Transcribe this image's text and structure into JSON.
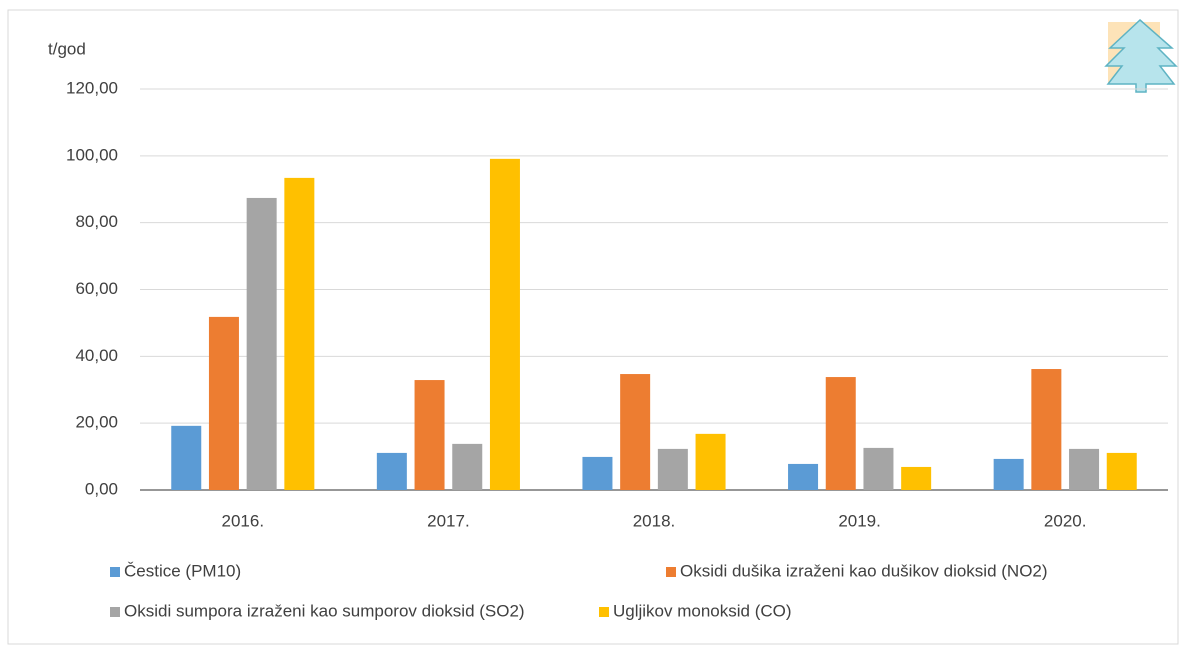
{
  "chart_data": {
    "type": "bar",
    "y_label": "t/god",
    "categories": [
      "2016.",
      "2017.",
      "2018.",
      "2019.",
      "2020."
    ],
    "series": [
      {
        "name": "Čestice (PM10)",
        "color": "#5b9bd5",
        "values": [
          19.2,
          11.1,
          9.9,
          7.8,
          9.3
        ]
      },
      {
        "name": "Oksidi dušika izraženi kao dušikov dioksid (NO2)",
        "color": "#ed7d31",
        "values": [
          51.8,
          32.9,
          34.7,
          33.8,
          36.2
        ]
      },
      {
        "name": "Oksidi sumpora izraženi kao sumporov dioksid (SO2)",
        "color": "#a5a5a5",
        "values": [
          87.4,
          13.8,
          12.3,
          12.6,
          12.3
        ]
      },
      {
        "name": "Ugljikov monoksid (CO)",
        "color": "#ffc000",
        "values": [
          93.4,
          99.1,
          16.8,
          6.9,
          11.1
        ]
      }
    ],
    "ylim": [
      0,
      120
    ],
    "yticks": [
      {
        "value": 0,
        "label": "0,00"
      },
      {
        "value": 20,
        "label": "20,00"
      },
      {
        "value": 40,
        "label": "40,00"
      },
      {
        "value": 60,
        "label": "60,00"
      },
      {
        "value": 80,
        "label": "80,00"
      },
      {
        "value": 100,
        "label": "100,00"
      },
      {
        "value": 120,
        "label": "120,00"
      }
    ],
    "grid": true
  }
}
